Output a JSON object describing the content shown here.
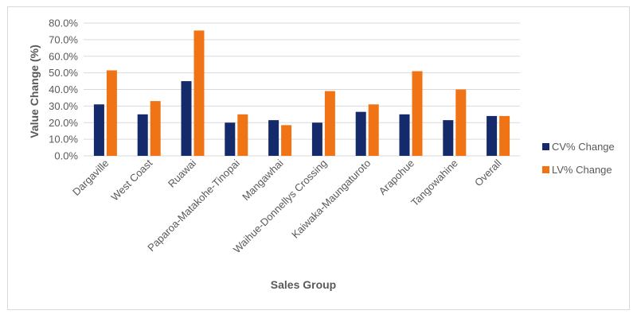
{
  "chart_data": {
    "type": "bar",
    "title": "",
    "xlabel": "Sales Group",
    "ylabel": "Value Change (%)",
    "ylim": [
      0,
      80
    ],
    "ytick_step": 10,
    "ytick_labels": [
      "0.0%",
      "10.0%",
      "20.0%",
      "30.0%",
      "40.0%",
      "50.0%",
      "60.0%",
      "70.0%",
      "80.0%"
    ],
    "grid": true,
    "legend_position": "right",
    "categories": [
      "Dargaville",
      "West Coast",
      "Ruawai",
      "Paparoa-Matakohe-Tinopai",
      "Mangawhai",
      "Waihue-Donnellys Crossing",
      "Kaiwaka-Maungaturoto",
      "Arapohue",
      "Tangowahine",
      "Overall"
    ],
    "series": [
      {
        "name": "CV% Change",
        "color": "#142a6b",
        "values": [
          31,
          25,
          45,
          20,
          21.5,
          20,
          26.5,
          25,
          21.5,
          24
        ]
      },
      {
        "name": "LV% Change",
        "color": "#f07416",
        "values": [
          51.5,
          33,
          75.5,
          25,
          18.5,
          39,
          31,
          51,
          40,
          24
        ]
      }
    ]
  }
}
